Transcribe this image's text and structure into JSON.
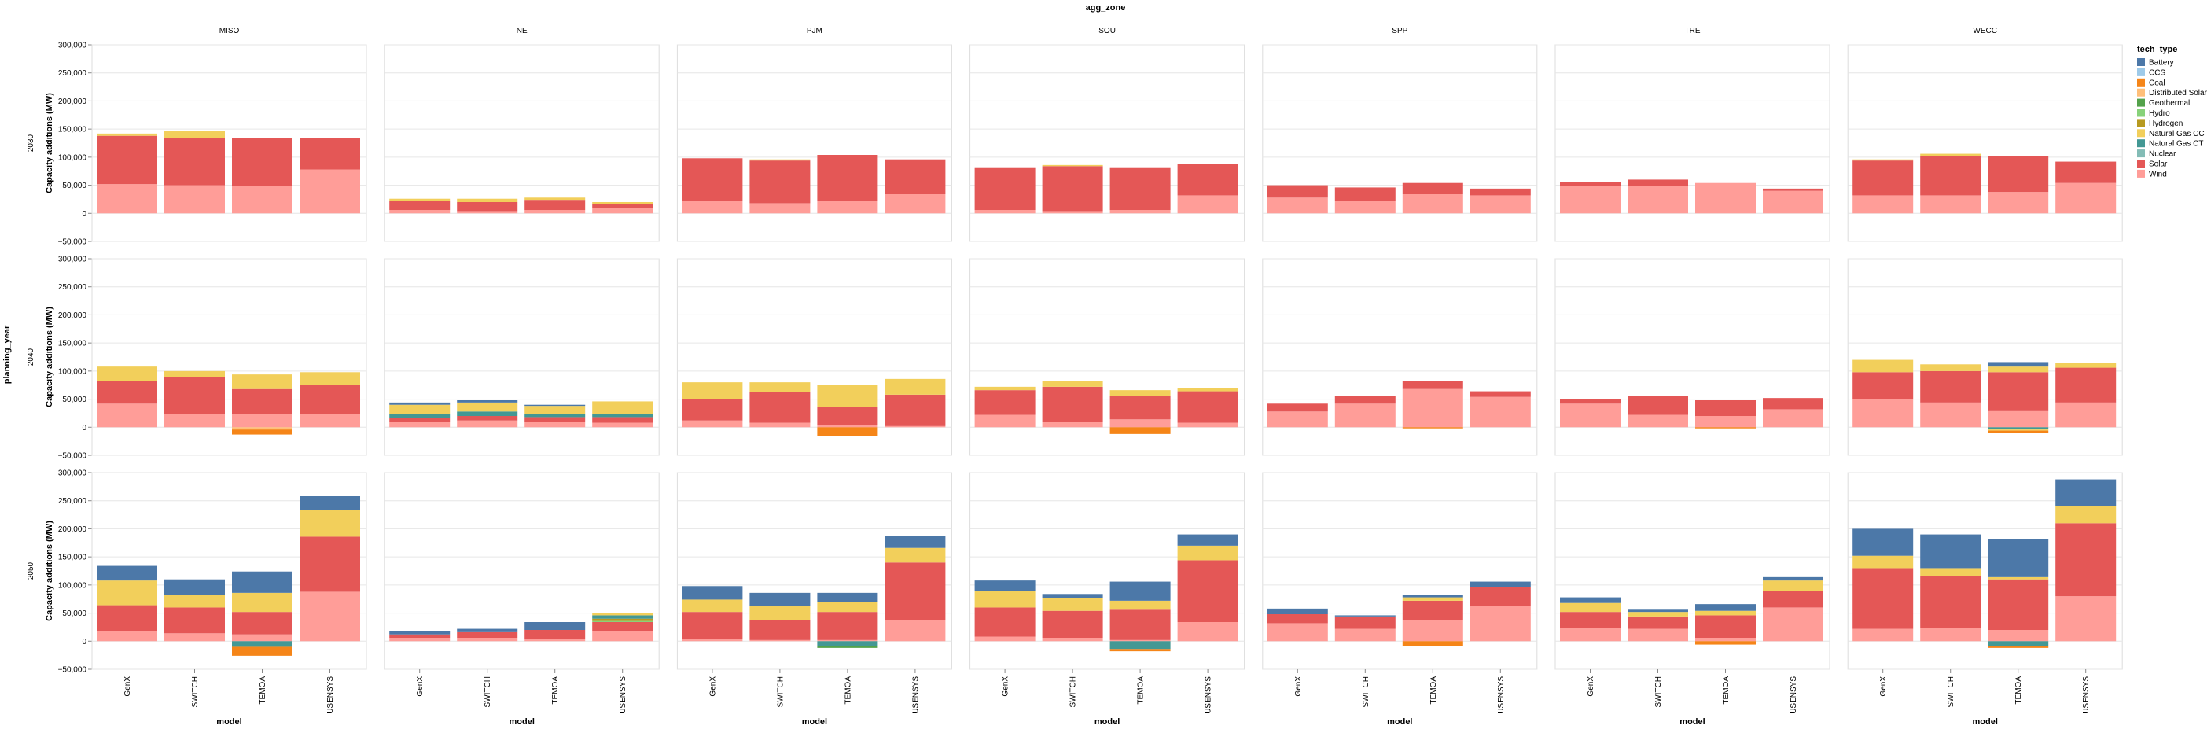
{
  "chart_data": {
    "type": "bar",
    "stacked": true,
    "title": "agg_zone",
    "ylabel": "Capacity additions (MW)",
    "row_facet_label": "planning_year",
    "xlabel": "model",
    "legend_title": "tech_type",
    "legend_position": "right",
    "grid": true,
    "ylim": [
      -50000,
      300000
    ],
    "y_ticks": [
      -50000,
      0,
      50000,
      100000,
      150000,
      200000,
      250000,
      300000
    ],
    "y_tick_labels": [
      "−50,000",
      "0",
      "50,000",
      "100,000",
      "150,000",
      "200,000",
      "250,000",
      "300,000"
    ],
    "zones": [
      "MISO",
      "NE",
      "PJM",
      "SOU",
      "SPP",
      "TRE",
      "WECC"
    ],
    "years": [
      "2030",
      "2040",
      "2050"
    ],
    "models": [
      "GenX",
      "SWITCH",
      "TEMOA",
      "USENSYS"
    ],
    "tech_types": [
      "Battery",
      "CCS",
      "Coal",
      "Distributed Solar",
      "Geothermal",
      "Hydro",
      "Hydrogen",
      "Natural Gas CC",
      "Natural Gas CT",
      "Nuclear",
      "Solar",
      "Wind"
    ],
    "colors": {
      "Battery": "#4c78a8",
      "CCS": "#9ecae9",
      "Coal": "#f58518",
      "Distributed Solar": "#ffbf79",
      "Geothermal": "#54a24b",
      "Hydro": "#88d27a",
      "Hydrogen": "#b79a20",
      "Natural Gas CC": "#f2cf5b",
      "Natural Gas CT": "#439894",
      "Nuclear": "#83bcb6",
      "Solar": "#e45756",
      "Wind": "#ff9d98"
    },
    "series": {
      "2030": {
        "MISO": {
          "GenX": {
            "Wind": 52000,
            "Solar": 86000,
            "Natural Gas CC": 4000
          },
          "SWITCH": {
            "Wind": 50000,
            "Solar": 84000,
            "Natural Gas CC": 12000
          },
          "TEMOA": {
            "Wind": 48000,
            "Solar": 86000
          },
          "USENSYS": {
            "Wind": 78000,
            "Solar": 56000
          }
        },
        "NE": {
          "GenX": {
            "Wind": 6000,
            "Solar": 16000,
            "Natural Gas CC": 4000
          },
          "SWITCH": {
            "Wind": 4000,
            "Solar": 16000,
            "Natural Gas CC": 6000
          },
          "TEMOA": {
            "Wind": 6000,
            "Solar": 18000,
            "Natural Gas CC": 4000
          },
          "USENSYS": {
            "Wind": 10000,
            "Coal": 2000,
            "Solar": 6000,
            "Natural Gas CC": 4000
          }
        },
        "PJM": {
          "GenX": {
            "Wind": 22000,
            "Solar": 76000
          },
          "SWITCH": {
            "Wind": 18000,
            "Solar": 76000,
            "Natural Gas CC": 2000
          },
          "TEMOA": {
            "Wind": 22000,
            "Solar": 82000
          },
          "USENSYS": {
            "Wind": 34000,
            "Solar": 62000
          }
        },
        "SOU": {
          "GenX": {
            "Wind": 6000,
            "Solar": 76000
          },
          "SWITCH": {
            "Wind": 4000,
            "Solar": 80000,
            "Natural Gas CC": 2000
          },
          "TEMOA": {
            "Wind": 6000,
            "Solar": 76000
          },
          "USENSYS": {
            "Wind": 32000,
            "Solar": 56000
          }
        },
        "SPP": {
          "GenX": {
            "Wind": 28000,
            "Solar": 22000
          },
          "SWITCH": {
            "Wind": 22000,
            "Solar": 24000
          },
          "TEMOA": {
            "Wind": 34000,
            "Solar": 20000
          },
          "USENSYS": {
            "Wind": 32000,
            "Solar": 12000
          }
        },
        "TRE": {
          "GenX": {
            "Wind": 48000,
            "Solar": 8000
          },
          "SWITCH": {
            "Wind": 48000,
            "Solar": 12000
          },
          "TEMOA": {
            "Wind": 54000
          },
          "USENSYS": {
            "Wind": 40000,
            "Solar": 4000
          }
        },
        "WECC": {
          "GenX": {
            "Wind": 32000,
            "Solar": 62000,
            "Natural Gas CC": 2000
          },
          "SWITCH": {
            "Wind": 32000,
            "Solar": 70000,
            "Natural Gas CC": 4000
          },
          "TEMOA": {
            "Wind": 38000,
            "Solar": 64000
          },
          "USENSYS": {
            "Wind": 54000,
            "Solar": 38000
          }
        }
      },
      "2040": {
        "MISO": {
          "GenX": {
            "Wind": 42000,
            "Solar": 40000,
            "Natural Gas CC": 26000
          },
          "SWITCH": {
            "Wind": 24000,
            "Solar": 66000,
            "Natural Gas CC": 10000
          },
          "TEMOA": {
            "Wind": 24000,
            "Solar": 44000,
            "Natural Gas CC": 26000,
            "Distributed Solar": -4000,
            "Coal": -9000
          },
          "USENSYS": {
            "Wind": 24000,
            "Solar": 52000,
            "Natural Gas CC": 22000
          }
        },
        "NE": {
          "GenX": {
            "Wind": 10000,
            "Solar": 6000,
            "Natural Gas CT": 8000,
            "Battery": 4000,
            "Natural Gas CC": 16000
          },
          "SWITCH": {
            "Wind": 12000,
            "Solar": 8000,
            "Natural Gas CT": 8000,
            "Battery": 4000,
            "Natural Gas CC": 16000
          },
          "TEMOA": {
            "Wind": 10000,
            "Solar": 8000,
            "Natural Gas CT": 6000,
            "Battery": 2000,
            "Natural Gas CC": 14000
          },
          "USENSYS": {
            "Wind": 8000,
            "Solar": 10000,
            "Natural Gas CT": 6000,
            "Natural Gas CC": 22000
          }
        },
        "PJM": {
          "GenX": {
            "Wind": 12000,
            "Solar": 38000,
            "Natural Gas CC": 30000
          },
          "SWITCH": {
            "Wind": 8000,
            "Solar": 54000,
            "Natural Gas CC": 18000
          },
          "TEMOA": {
            "Wind": 4000,
            "Solar": 32000,
            "Natural Gas CC": 40000,
            "Coal": -16000
          },
          "USENSYS": {
            "Wind": 2000,
            "Solar": 56000,
            "Natural Gas CC": 28000
          }
        },
        "SOU": {
          "GenX": {
            "Wind": 22000,
            "Solar": 44000,
            "Natural Gas CC": 6000
          },
          "SWITCH": {
            "Wind": 10000,
            "Solar": 62000,
            "Natural Gas CC": 10000
          },
          "TEMOA": {
            "Wind": 14000,
            "Solar": 42000,
            "Natural Gas CC": 10000,
            "Coal": -12000
          },
          "USENSYS": {
            "Wind": 8000,
            "Solar": 56000,
            "Natural Gas CC": 6000
          }
        },
        "SPP": {
          "GenX": {
            "Wind": 28000,
            "Solar": 14000
          },
          "SWITCH": {
            "Wind": 42000,
            "Solar": 14000
          },
          "TEMOA": {
            "Wind": 68000,
            "Solar": 14000,
            "Natural Gas CC": -2000,
            "Coal": -2000
          },
          "USENSYS": {
            "Wind": 54000,
            "Solar": 10000
          }
        },
        "TRE": {
          "GenX": {
            "Wind": 42000,
            "Solar": 8000
          },
          "SWITCH": {
            "Wind": 22000,
            "Solar": 34000
          },
          "TEMOA": {
            "Wind": 20000,
            "Solar": 28000,
            "Natural Gas CC": -2000,
            "Coal": -2000
          },
          "USENSYS": {
            "Wind": 32000,
            "Solar": 20000
          }
        },
        "WECC": {
          "GenX": {
            "Wind": 50000,
            "Solar": 48000,
            "Natural Gas CC": 22000
          },
          "SWITCH": {
            "Wind": 44000,
            "Solar": 56000,
            "Natural Gas CC": 12000
          },
          "TEMOA": {
            "Wind": 30000,
            "Solar": 68000,
            "Natural Gas CC": 10000,
            "Battery": 8000,
            "Natural Gas CT": -4000,
            "Natural Gas CC_neg": -2000,
            "Coal": -4000
          },
          "USENSYS": {
            "Wind": 44000,
            "Solar": 62000,
            "Natural Gas CC": 8000
          }
        }
      },
      "2050": {
        "MISO": {
          "GenX": {
            "Wind": 18000,
            "Solar": 46000,
            "Natural Gas CC": 44000,
            "Battery": 26000
          },
          "SWITCH": {
            "Wind": 14000,
            "Solar": 46000,
            "Natural Gas CC": 22000,
            "Battery": 28000
          },
          "TEMOA": {
            "Wind": 12000,
            "Solar": 40000,
            "Natural Gas CC": 34000,
            "Battery": 38000,
            "Natural Gas CT": -10000,
            "Coal": -16000
          },
          "USENSYS": {
            "Wind": 88000,
            "Solar": 98000,
            "Natural Gas CC": 48000,
            "Battery": 24000
          }
        },
        "NE": {
          "GenX": {
            "Wind": 6000,
            "Solar": 6000,
            "Battery": 6000
          },
          "SWITCH": {
            "Wind": 6000,
            "Solar": 10000,
            "Battery": 6000
          },
          "TEMOA": {
            "Wind": 4000,
            "Solar": 16000,
            "Battery": 14000
          },
          "USENSYS": {
            "Wind": 18000,
            "Solar": 16000,
            "Natural Gas CT": 6000,
            "Hydrogen": 4000,
            "Hydro": 2000,
            "Natural Gas CC": 4000
          }
        },
        "PJM": {
          "GenX": {
            "Wind": 4000,
            "Solar": 48000,
            "Natural Gas CC": 22000,
            "Battery": 24000
          },
          "SWITCH": {
            "Wind": 2000,
            "Solar": 36000,
            "Natural Gas CC": 24000,
            "Battery": 24000
          },
          "TEMOA": {
            "Wind": 2000,
            "Solar": 50000,
            "Natural Gas CC": 18000,
            "Battery": 16000,
            "Natural Gas CT": -8000,
            "Geothermal": -4000
          },
          "USENSYS": {
            "Wind": 38000,
            "Solar": 102000,
            "Natural Gas CC": 26000,
            "Battery": 22000
          }
        },
        "SOU": {
          "GenX": {
            "Wind": 8000,
            "Solar": 52000,
            "Natural Gas CC": 30000,
            "Battery": 18000
          },
          "SWITCH": {
            "Wind": 6000,
            "Solar": 48000,
            "Natural Gas CC": 22000,
            "Battery": 8000
          },
          "TEMOA": {
            "Wind": 2000,
            "Solar": 54000,
            "Natural Gas CC": 16000,
            "Battery": 34000,
            "Natural Gas CT": -14000,
            "Coal": -4000
          },
          "USENSYS": {
            "Wind": 34000,
            "Solar": 110000,
            "Natural Gas CC": 26000,
            "Battery": 20000
          }
        },
        "SPP": {
          "GenX": {
            "Wind": 32000,
            "Solar": 16000,
            "Battery": 10000
          },
          "SWITCH": {
            "Wind": 22000,
            "Solar": 22000,
            "Battery": 2000
          },
          "TEMOA": {
            "Wind": 38000,
            "Solar": 34000,
            "Natural Gas CC": 6000,
            "Battery": 4000,
            "Coal": -8000
          },
          "USENSYS": {
            "Wind": 62000,
            "Solar": 34000,
            "Battery": 10000
          }
        },
        "TRE": {
          "GenX": {
            "Wind": 24000,
            "Solar": 28000,
            "Natural Gas CC": 16000,
            "Battery": 10000
          },
          "SWITCH": {
            "Wind": 22000,
            "Solar": 22000,
            "Natural Gas CC": 8000,
            "Battery": 4000
          },
          "TEMOA": {
            "Wind": 6000,
            "Solar": 40000,
            "Natural Gas CC": 8000,
            "Battery": 12000,
            "Coal": -6000
          },
          "USENSYS": {
            "Wind": 60000,
            "Solar": 30000,
            "Natural Gas CC": 18000,
            "Battery": 6000
          }
        },
        "WECC": {
          "GenX": {
            "Wind": 22000,
            "Solar": 108000,
            "Natural Gas CC": 22000,
            "Battery": 48000
          },
          "SWITCH": {
            "Wind": 24000,
            "Solar": 92000,
            "Natural Gas CC": 14000,
            "Battery": 60000
          },
          "TEMOA": {
            "Wind": 20000,
            "Solar": 90000,
            "Natural Gas CC": 4000,
            "Battery": 68000,
            "Natural Gas CT": -8000,
            "Coal": -4000
          },
          "USENSYS": {
            "Wind": 80000,
            "Solar": 130000,
            "Natural Gas CC": 30000,
            "Battery": 48000
          }
        }
      }
    }
  }
}
